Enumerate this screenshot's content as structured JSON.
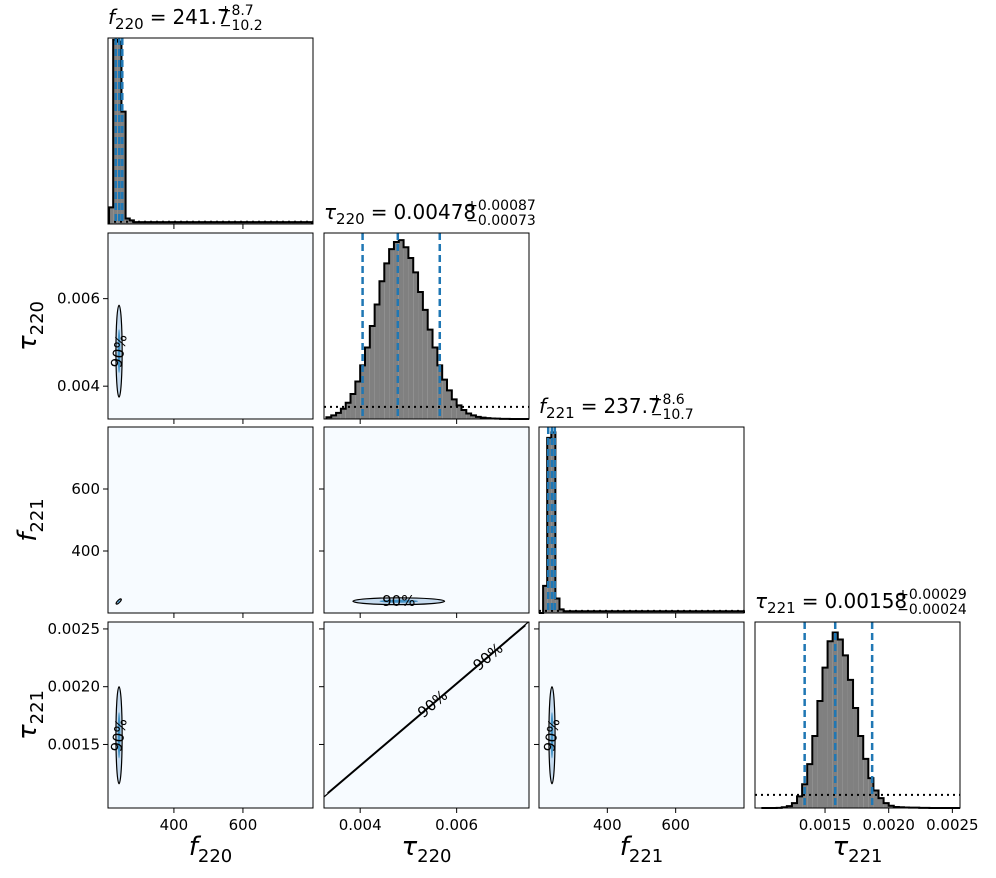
{
  "chart_data": {
    "type": "corner",
    "title_separator": "=",
    "contour_label": "90%",
    "colors": {
      "hist_fill": "#808080",
      "quantile": "#1f77b4",
      "background": "#f7fbff",
      "contour_fill": "#c6dbef",
      "contour_core": "#4292c6"
    },
    "parameters": [
      {
        "symbol": "f",
        "subscript": "220",
        "title": {
          "median": "241.7",
          "plus": "+8.7",
          "minus": "−10.2"
        },
        "lim": [
          209,
          803
        ],
        "ticks": [
          400,
          600
        ],
        "quantiles": [
          231.5,
          241.7,
          250.4
        ],
        "hist": {
          "bins": [
            212,
            224,
            236,
            248,
            260,
            272,
            284,
            296,
            308,
            320,
            332,
            344,
            356,
            368,
            380,
            392,
            404,
            416,
            428,
            440,
            452,
            464,
            476,
            488,
            500,
            512,
            524,
            536,
            548,
            560,
            572,
            584,
            596,
            608,
            620,
            632,
            644,
            656,
            668,
            680,
            692,
            704,
            716,
            728,
            740,
            752,
            764,
            776,
            788,
            800
          ],
          "counts": [
            0.09,
            1.0,
            0.99,
            0.61,
            0.03,
            0.02,
            0.01,
            0.01,
            0.01,
            0.01,
            0.01,
            0.01,
            0.01,
            0.01,
            0.01,
            0.01,
            0.01,
            0.01,
            0.01,
            0.01,
            0.01,
            0.01,
            0.01,
            0.01,
            0.01,
            0.01,
            0.01,
            0.01,
            0.01,
            0.01,
            0.01,
            0.01,
            0.01,
            0.01,
            0.01,
            0.01,
            0.01,
            0.01,
            0.01,
            0.01,
            0.01,
            0.01,
            0.01,
            0.01,
            0.01,
            0.01,
            0.01,
            0.01,
            0.01
          ],
          "ylim": [
            0,
            1.01
          ],
          "prior": 0.012
        }
      },
      {
        "symbol": "τ",
        "subscript": "220",
        "title": {
          "median": "0.00478",
          "plus": "+0.00087",
          "minus": "−0.00073"
        },
        "lim": [
          0.00325,
          0.0075
        ],
        "ticks": [
          0.004,
          0.006
        ],
        "quantiles": [
          0.00405,
          0.00478,
          0.00565
        ],
        "hist": {
          "bins": [
            0.0033,
            0.0034,
            0.0035,
            0.0036,
            0.0037,
            0.0038,
            0.0039,
            0.004,
            0.0041,
            0.0042,
            0.0043,
            0.0044,
            0.0045,
            0.0046,
            0.0047,
            0.0048,
            0.0049,
            0.005,
            0.0051,
            0.0052,
            0.0053,
            0.0054,
            0.0055,
            0.0056,
            0.0057,
            0.0058,
            0.0059,
            0.006,
            0.0061,
            0.0062,
            0.0063,
            0.0064,
            0.0065,
            0.0066,
            0.0067,
            0.0068,
            0.0069,
            0.007,
            0.0071,
            0.0072,
            0.0073,
            0.0074,
            0.0075
          ],
          "counts": [
            0.01,
            0.02,
            0.034,
            0.057,
            0.091,
            0.14,
            0.21,
            0.3,
            0.4,
            0.52,
            0.64,
            0.77,
            0.87,
            0.95,
            0.99,
            1.0,
            0.96,
            0.9,
            0.82,
            0.71,
            0.61,
            0.5,
            0.4,
            0.3,
            0.22,
            0.16,
            0.11,
            0.076,
            0.05,
            0.031,
            0.02,
            0.012,
            0.008,
            0.005,
            0.003,
            0.002,
            0.001,
            0.001,
            0,
            0,
            0,
            0
          ],
          "ylim": [
            0,
            1.04
          ],
          "prior": 0.068
        }
      },
      {
        "symbol": "f",
        "subscript": "221",
        "title": {
          "median": "237.7",
          "plus": "+8.6",
          "minus": "−10.7"
        },
        "lim": [
          200,
          800
        ],
        "ticks": [
          400,
          600
        ],
        "quantiles": [
          227.0,
          237.7,
          246.3
        ],
        "hist": {
          "bins": [
            200,
            212,
            224,
            236,
            248,
            260,
            272,
            284,
            296,
            308,
            320,
            332,
            344,
            356,
            368,
            380,
            392,
            404,
            416,
            428,
            440,
            452,
            464,
            476,
            488,
            500,
            512,
            524,
            536,
            548,
            560,
            572,
            584,
            596,
            608,
            620,
            632,
            644,
            656,
            668,
            680,
            692,
            704,
            716,
            728,
            740,
            752,
            764,
            776,
            788,
            800
          ],
          "counts": [
            0,
            0.15,
            0.97,
            1.0,
            0.08,
            0.02,
            0.01,
            0.01,
            0.01,
            0.01,
            0.01,
            0.01,
            0.01,
            0.01,
            0.01,
            0.01,
            0.01,
            0.01,
            0.01,
            0.01,
            0.01,
            0.01,
            0.01,
            0.01,
            0.01,
            0.01,
            0.01,
            0.01,
            0.01,
            0.01,
            0.01,
            0.01,
            0.01,
            0.01,
            0.01,
            0.01,
            0.01,
            0.01,
            0.01,
            0.01,
            0.01,
            0.01,
            0.01,
            0.01,
            0.01,
            0.01,
            0.01,
            0.01,
            0.01,
            0.01
          ],
          "ylim": [
            0,
            1.03
          ],
          "prior": 0.012
        }
      },
      {
        "symbol": "τ",
        "subscript": "221",
        "title": {
          "median": "0.00158",
          "plus": "+0.00029",
          "minus": "−0.00024"
        },
        "lim": [
          0.00095,
          0.00256
        ],
        "ticks": [
          0.0015,
          {
            "value": 0.002,
            "label": "0.0020"
          },
          0.0025
        ],
        "quantiles": [
          0.00134,
          0.00158,
          0.00187
        ],
        "hist": {
          "bins": [
            0.001,
            0.00104,
            0.00108,
            0.00112,
            0.00116,
            0.0012,
            0.00124,
            0.00128,
            0.00132,
            0.00136,
            0.0014,
            0.00144,
            0.00148,
            0.00152,
            0.00156,
            0.0016,
            0.00164,
            0.00168,
            0.00172,
            0.00176,
            0.0018,
            0.00184,
            0.00188,
            0.00192,
            0.00196,
            0.002,
            0.00204,
            0.00208,
            0.00212,
            0.00216,
            0.0022,
            0.00224,
            0.00228,
            0.00232,
            0.00236,
            0.0024,
            0.00244,
            0.00248,
            0.00252,
            0.00256
          ],
          "counts": [
            0,
            0,
            0,
            0.001,
            0.004,
            0.011,
            0.028,
            0.066,
            0.135,
            0.25,
            0.41,
            0.61,
            0.8,
            0.95,
            1,
            0.96,
            0.87,
            0.73,
            0.57,
            0.41,
            0.28,
            0.17,
            0.1,
            0.056,
            0.028,
            0.013,
            0.006,
            0.004,
            0.003,
            0.002,
            0.002,
            0.001,
            0.001,
            0,
            0,
            0,
            0,
            0,
            0
          ],
          "ylim": [
            0,
            1.06
          ],
          "prior": 0.075
        }
      }
    ],
    "pairs": [
      {
        "x": 0,
        "y": 1,
        "center": [
          241,
          0.0048
        ],
        "spread": [
          9,
          0.00105
        ],
        "inner": [
          4,
          0.0005
        ]
      },
      {
        "x": 0,
        "y": 2,
        "center": [
          240,
          237
        ],
        "spread": [
          5,
          6
        ],
        "inner": [
          2,
          2
        ]
      },
      {
        "x": 1,
        "y": 2,
        "center": [
          0.0048,
          238
        ],
        "spread": [
          0.00095,
          11
        ],
        "inner": [
          0.0004,
          5
        ]
      },
      {
        "x": 0,
        "y": 3,
        "center": [
          241,
          0.00158
        ],
        "spread": [
          9,
          0.00042
        ],
        "inner": [
          4,
          0.0002
        ]
      },
      {
        "x": 1,
        "y": 3,
        "line": [
          [
            0.00325,
            0.00105
          ],
          [
            0.0075,
            0.00256
          ]
        ]
      },
      {
        "x": 2,
        "y": 3,
        "center": [
          238,
          0.00158
        ],
        "spread": [
          9,
          0.00042
        ],
        "inner": [
          4,
          0.0002
        ]
      }
    ]
  }
}
